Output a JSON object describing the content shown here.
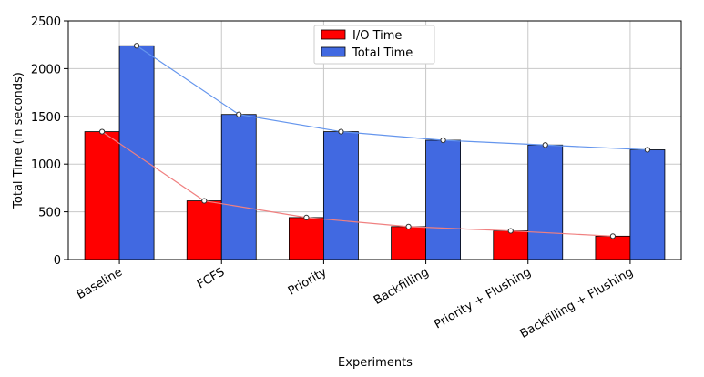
{
  "chart_data": {
    "type": "bar",
    "title": "",
    "xlabel": "Experiments",
    "ylabel": "Total Time (in seconds)",
    "categories": [
      "Baseline",
      "FCFS",
      "Priority",
      "Backfilling",
      "Priority + Flushing",
      "Backfilling + Flushing"
    ],
    "ylim": [
      0,
      2500
    ],
    "yticks": [
      0,
      500,
      1000,
      1500,
      2000,
      2500
    ],
    "grid": true,
    "legend_position": "top-center",
    "series": [
      {
        "name": "I/O Time",
        "color": "#ff0000",
        "line_color": "#f08080",
        "values": [
          1340,
          615,
          440,
          345,
          300,
          245
        ]
      },
      {
        "name": "Total Time",
        "color": "#4169e1",
        "line_color": "#6495ed",
        "values": [
          2240,
          1520,
          1340,
          1250,
          1200,
          1150
        ]
      }
    ],
    "overlay": "trend lines with circle markers at bar tops"
  }
}
